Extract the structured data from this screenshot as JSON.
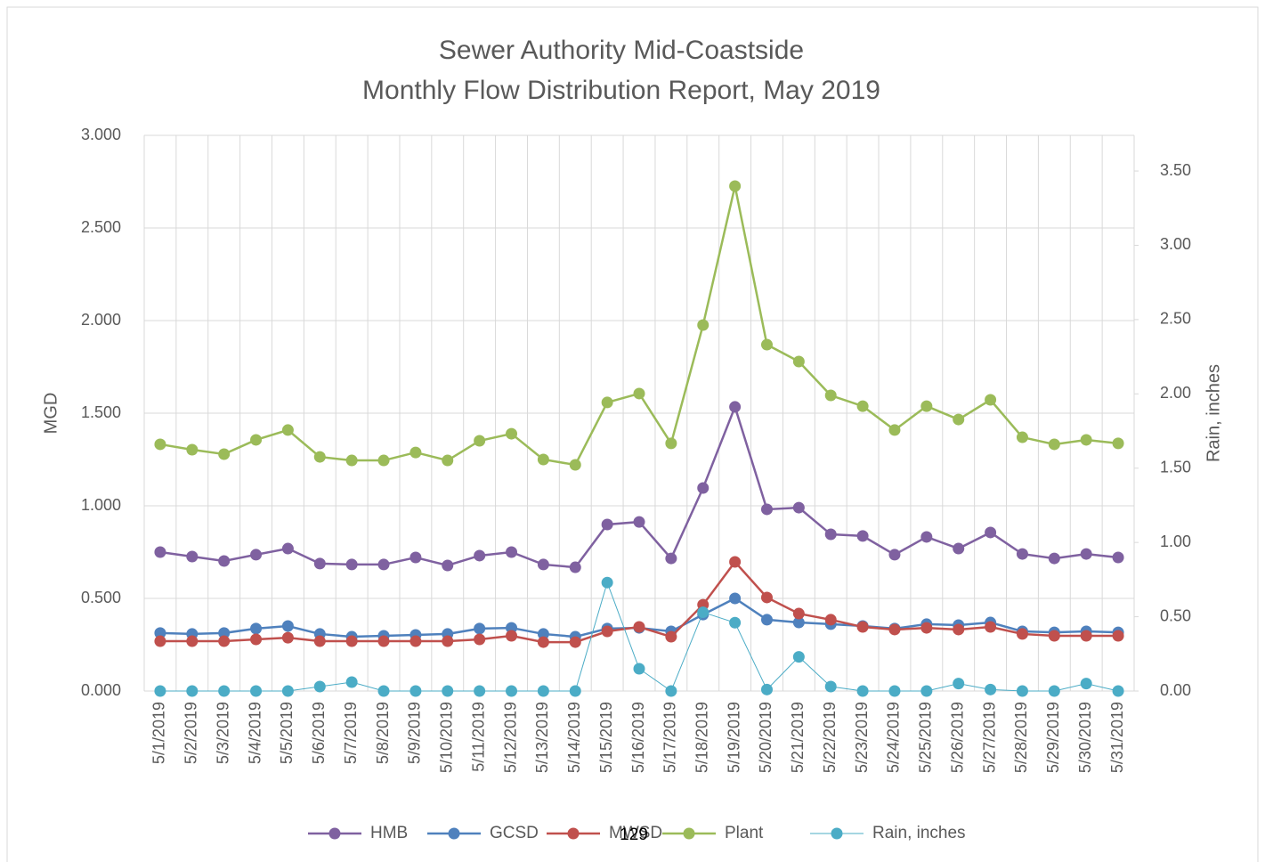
{
  "chart_data": {
    "type": "line",
    "title": "Sewer Authority Mid-Coastside",
    "subtitle": "Monthly Flow Distribution Report, May 2019",
    "y_label": "MGD",
    "y2_label": "Rain, inches",
    "categories": [
      "5/1/2019",
      "5/2/2019",
      "5/3/2019",
      "5/4/2019",
      "5/5/2019",
      "5/6/2019",
      "5/7/2019",
      "5/8/2019",
      "5/9/2019",
      "5/10/2019",
      "5/11/2019",
      "5/12/2019",
      "5/13/2019",
      "5/14/2019",
      "5/15/2019",
      "5/16/2019",
      "5/17/2019",
      "5/18/2019",
      "5/19/2019",
      "5/20/2019",
      "5/21/2019",
      "5/22/2019",
      "5/23/2019",
      "5/24/2019",
      "5/25/2019",
      "5/26/2019",
      "5/27/2019",
      "5/28/2019",
      "5/29/2019",
      "5/30/2019",
      "5/31/2019"
    ],
    "series": [
      {
        "name": "HMB",
        "color": "#7f61a0",
        "values": [
          0.75,
          0.726,
          0.702,
          0.736,
          0.769,
          0.688,
          0.683,
          0.683,
          0.721,
          0.678,
          0.731,
          0.75,
          0.683,
          0.668,
          0.899,
          0.913,
          0.716,
          1.096,
          1.534,
          0.981,
          0.99,
          0.846,
          0.837,
          0.736,
          0.832,
          0.769,
          0.856,
          0.74,
          0.716,
          0.74,
          0.721
        ]
      },
      {
        "name": "GCSD",
        "color": "#4f81bd",
        "values": [
          0.313,
          0.308,
          0.313,
          0.337,
          0.351,
          0.308,
          0.293,
          0.298,
          0.303,
          0.308,
          0.337,
          0.341,
          0.308,
          0.293,
          0.337,
          0.341,
          0.322,
          0.413,
          0.5,
          0.385,
          0.37,
          0.361,
          0.351,
          0.337,
          0.361,
          0.356,
          0.37,
          0.322,
          0.317,
          0.322,
          0.317
        ]
      },
      {
        "name": "MWSD",
        "color": "#c0504d",
        "values": [
          0.269,
          0.269,
          0.269,
          0.279,
          0.288,
          0.269,
          0.269,
          0.269,
          0.269,
          0.269,
          0.279,
          0.298,
          0.264,
          0.264,
          0.322,
          0.346,
          0.293,
          0.466,
          0.697,
          0.505,
          0.418,
          0.385,
          0.346,
          0.332,
          0.341,
          0.332,
          0.346,
          0.308,
          0.298,
          0.298,
          0.298
        ]
      },
      {
        "name": "Plant",
        "color": "#9bbb59",
        "values": [
          1.332,
          1.303,
          1.279,
          1.356,
          1.409,
          1.264,
          1.245,
          1.245,
          1.288,
          1.245,
          1.351,
          1.389,
          1.25,
          1.221,
          1.558,
          1.606,
          1.337,
          1.976,
          2.726,
          1.87,
          1.779,
          1.596,
          1.538,
          1.409,
          1.538,
          1.466,
          1.572,
          1.37,
          1.332,
          1.356,
          1.337
        ]
      },
      {
        "name": "Rain, inches",
        "color": "#4bacc6",
        "axis": "y2",
        "values": [
          0,
          0,
          0,
          0,
          0,
          0.03,
          0.06,
          0,
          0,
          0,
          0,
          0,
          0,
          0,
          0.73,
          0.15,
          0,
          0.53,
          0.46,
          0.01,
          0.23,
          0.03,
          0,
          0,
          0,
          0.05,
          0.01,
          0,
          0,
          0.05,
          0
        ]
      }
    ],
    "ylim": [
      0,
      3
    ],
    "yticks": [
      {
        "value": 0,
        "label": "0.000"
      },
      {
        "value": 0.5,
        "label": "0.500"
      },
      {
        "value": 1,
        "label": "1.000"
      },
      {
        "value": 1.5,
        "label": "1.500"
      },
      {
        "value": 2,
        "label": "2.000"
      },
      {
        "value": 2.5,
        "label": "2.500"
      },
      {
        "value": 3,
        "label": "3.000"
      }
    ],
    "y2lim": [
      0,
      3.74
    ],
    "y2ticks": [
      {
        "value": 0,
        "label": "0.00"
      },
      {
        "value": 0.5,
        "label": "0.50"
      },
      {
        "value": 1,
        "label": "1.00"
      },
      {
        "value": 1.5,
        "label": "1.50"
      },
      {
        "value": 2,
        "label": "2.00"
      },
      {
        "value": 2.5,
        "label": "2.50"
      },
      {
        "value": 3,
        "label": "3.00"
      },
      {
        "value": 3.5,
        "label": "3.50"
      }
    ],
    "grid": true,
    "legend": "bottom"
  },
  "footer": "129"
}
